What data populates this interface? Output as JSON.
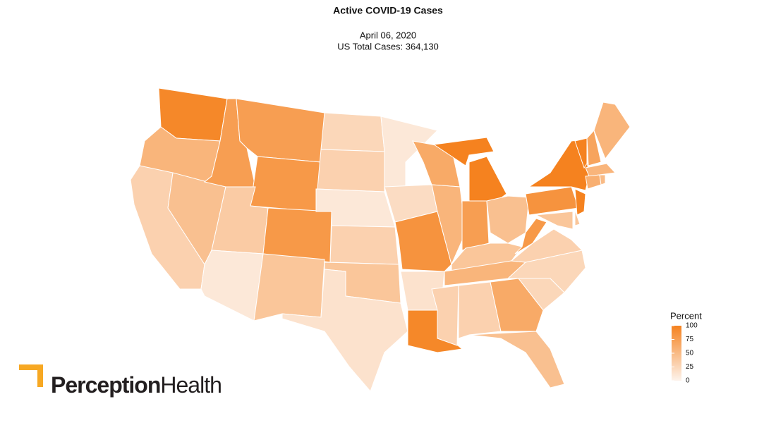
{
  "chart_data": {
    "type": "choropleth",
    "title": "Active COVID-19 Cases",
    "subtitle": [
      "April 06, 2020",
      "US Total Cases: 364,130"
    ],
    "values": [
      95,
      55,
      30,
      45,
      75,
      75,
      80,
      35,
      10,
      80,
      40,
      25,
      30,
      10,
      30,
      40,
      15,
      10,
      20,
      85,
      15,
      95,
      65,
      55,
      100,
      75,
      45,
      40,
      55,
      30,
      30,
      65,
      45,
      25,
      25,
      30,
      80,
      85,
      100,
      100,
      40,
      40,
      100,
      70,
      55,
      55,
      60,
      50
    ],
    "color_low": "#fdf3ec",
    "color_high": "#f5821f",
    "legend_title": "Percent",
    "clim": [
      0,
      100
    ],
    "cticks": [
      0,
      25,
      50,
      75,
      100
    ]
  },
  "logo": {
    "bold": "Perception",
    "light": "Health"
  }
}
